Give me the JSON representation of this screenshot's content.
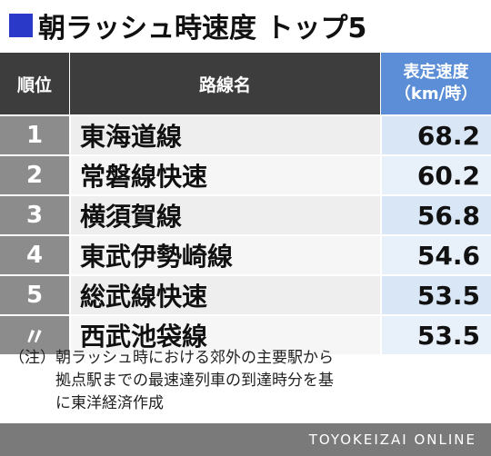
{
  "title": "朝ラッシュ時速度 トップ5",
  "colors": {
    "accent": "#2b39c8",
    "header_dark": "#3d3d3d",
    "header_blue": "#5b8ed6",
    "rank_bg": "#8c8c8c"
  },
  "table": {
    "headers": {
      "rank": "順位",
      "line": "路線名",
      "speed_line1": "表定速度",
      "speed_line2": "（km/時）"
    },
    "rows": [
      {
        "rank": "1",
        "line": "東海道線",
        "speed": "68.2"
      },
      {
        "rank": "2",
        "line": "常磐線快速",
        "speed": "60.2"
      },
      {
        "rank": "3",
        "line": "横須賀線",
        "speed": "56.8"
      },
      {
        "rank": "4",
        "line": "東武伊勢崎線",
        "speed": "54.6"
      },
      {
        "rank": "5",
        "line": "総武線快速",
        "speed": "53.5"
      },
      {
        "rank": "〃",
        "line": "西武池袋線",
        "speed": "53.5"
      }
    ]
  },
  "note": "（注）朝ラッシュ時における郊外の主要駅から\n　　　拠点駅までの最速達列車の到達時分を基\n　　　に東洋経済作成",
  "footer": {
    "brand": "TOYOKEIZAI ONLINE"
  }
}
